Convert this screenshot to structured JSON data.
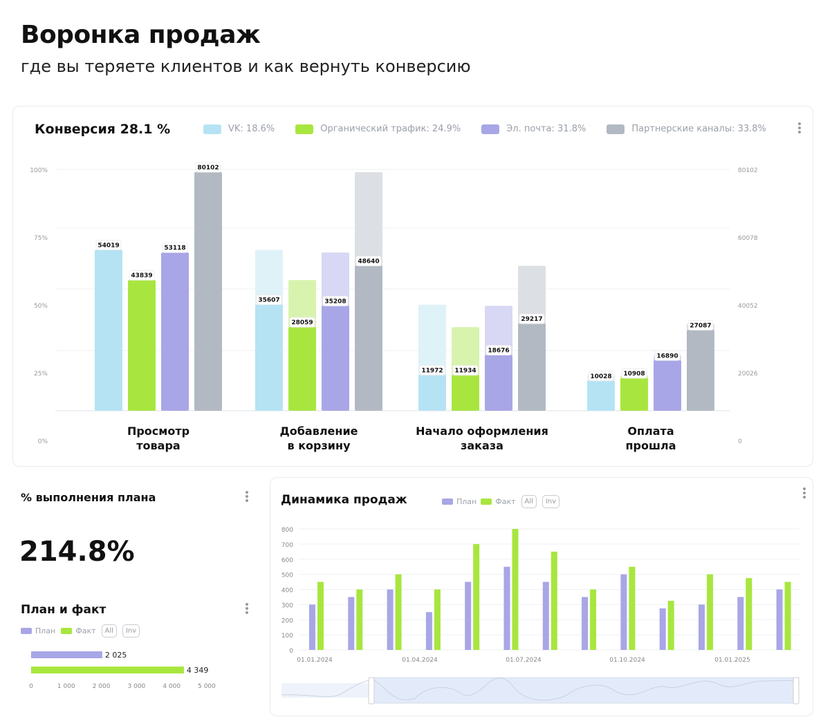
{
  "header": {
    "title": "Воронка продаж",
    "subtitle": "где вы теряете клиентов и как вернуть конверсию"
  },
  "funnel_card": {
    "title": "Конверсия 28.1 %"
  },
  "plan_card": {
    "title": "% выполнения плана",
    "value": "214.8%"
  },
  "chart_data": [
    {
      "type": "bar",
      "title": "Конверсия 28.1 %",
      "categories": [
        "Просмотр\nтовара",
        "Добавление\nв корзину",
        "Начало оформления\nзаказа",
        "Оплата\nпрошла"
      ],
      "category_lines": [
        [
          "Просмотр",
          "товара"
        ],
        [
          "Добавление",
          "в корзину"
        ],
        [
          "Начало оформления",
          "заказа"
        ],
        [
          "Оплата",
          "прошла"
        ]
      ],
      "series": [
        {
          "name": "VK: 18.6%",
          "color": "#b5e3f3",
          "values": [
            54019,
            35607,
            11972,
            10028
          ]
        },
        {
          "name": "Органический трафик: 24.9%",
          "color": "#a8e63f",
          "values": [
            43839,
            28059,
            11934,
            10908
          ]
        },
        {
          "name": "Эл. почта: 31.8%",
          "color": "#a8a6e6",
          "values": [
            53118,
            35208,
            18676,
            16890
          ]
        },
        {
          "name": "Партнерские каналы: 33.8%",
          "color": "#b2b9c3",
          "values": [
            80102,
            48640,
            29217,
            27087
          ]
        }
      ],
      "y_left_ticks": [
        "100%",
        "75%",
        "50%",
        "25%",
        "0%"
      ],
      "y_right_ticks": [
        "80102",
        "60078",
        "40052",
        "20026",
        "0"
      ],
      "ylim": [
        0,
        80102
      ],
      "legend": "top"
    },
    {
      "type": "bar",
      "title": "Динамика продаж",
      "x_ticks": [
        "01.01.2024",
        "01.04.2024",
        "01.07.2024",
        "01.10.2024",
        "01.01.2025"
      ],
      "series": [
        {
          "name": "План",
          "color": "#a8a6e6",
          "values": [
            300,
            350,
            400,
            250,
            450,
            550,
            450,
            350,
            500,
            275,
            300,
            350,
            400
          ]
        },
        {
          "name": "Факт",
          "color": "#a8e63f",
          "values": [
            450,
            400,
            500,
            400,
            700,
            800,
            650,
            400,
            550,
            325,
            500,
            475,
            450
          ]
        }
      ],
      "y_ticks": [
        "800",
        "700",
        "600",
        "500",
        "400",
        "300",
        "200",
        "100",
        "0"
      ],
      "ylim": [
        0,
        800
      ],
      "buttons": [
        "All",
        "Inv"
      ]
    },
    {
      "type": "bar",
      "orientation": "horizontal",
      "title": "План и факт",
      "series": [
        {
          "name": "План",
          "color": "#a8a6e6",
          "value": 2025,
          "label": "2 025"
        },
        {
          "name": "Факт",
          "color": "#a8e63f",
          "value": 4349,
          "label": "4 349"
        }
      ],
      "x_ticks": [
        "0",
        "1 000",
        "2 000",
        "3 000",
        "4 000",
        "5 000"
      ],
      "xlim": [
        0,
        5000
      ],
      "buttons": [
        "All",
        "Inv"
      ]
    }
  ]
}
